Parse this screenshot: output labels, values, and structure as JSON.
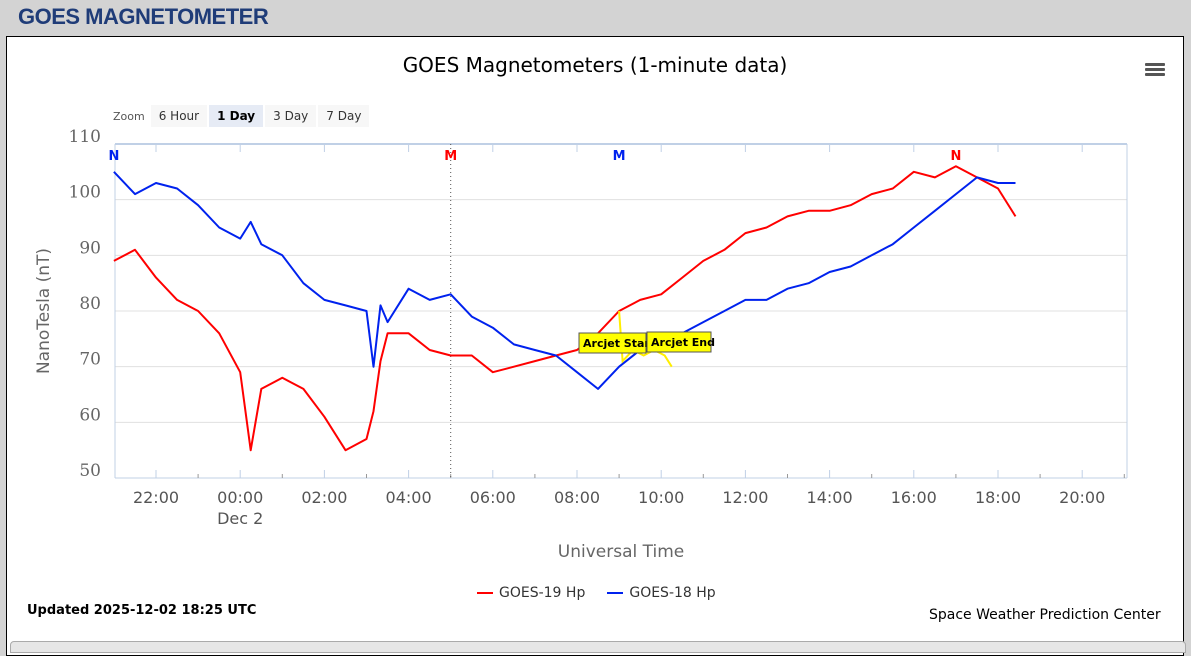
{
  "page": {
    "title": "GOES MAGNETOMETER"
  },
  "chart": {
    "title": "GOES Magnetometers (1-minute data)",
    "menu_icon": "hamburger-menu-icon",
    "zoom": {
      "label": "Zoom",
      "options": [
        "6 Hour",
        "1 Day",
        "3 Day",
        "7 Day"
      ],
      "selected": "1 Day"
    },
    "updated": "Updated 2025-12-02 18:25 UTC",
    "credit": "Space Weather Prediction Center",
    "legend": [
      {
        "label": "GOES-19 Hp",
        "color": "#ff0000"
      },
      {
        "label": "GOES-18 Hp",
        "color": "#0022ee"
      }
    ],
    "annotations": {
      "arcjet_start": "Arcjet Start",
      "arcjet_end": "Arcjet End",
      "markers": [
        {
          "label": "N",
          "time": "21:00",
          "color": "#0022ee"
        },
        {
          "label": "M",
          "time": "05:00",
          "color": "#ff0000"
        },
        {
          "label": "M",
          "time": "09:00",
          "color": "#0022ee"
        },
        {
          "label": "N",
          "time": "17:00",
          "color": "#ff0000"
        }
      ]
    }
  },
  "chart_data": {
    "type": "line",
    "title": "GOES Magnetometers (1-minute data)",
    "xlabel": "Universal Time",
    "ylabel": "NanoTesla (nT)",
    "ylim": [
      50,
      110
    ],
    "yticks": [
      50,
      60,
      70,
      80,
      90,
      100,
      110
    ],
    "xticks": [
      "22:00",
      "00:00",
      "02:00",
      "04:00",
      "06:00",
      "08:00",
      "10:00",
      "12:00",
      "14:00",
      "16:00",
      "18:00",
      "20:00"
    ],
    "xtick_sublabel": {
      "00:00": "Dec 2"
    },
    "xrange": [
      "Dec 1 21:00",
      "Dec 2 21:00"
    ],
    "grid": true,
    "legend_position": "bottom",
    "x": [
      "21:00",
      "21:30",
      "22:00",
      "22:30",
      "23:00",
      "23:30",
      "00:00",
      "00:15",
      "00:30",
      "01:00",
      "01:30",
      "02:00",
      "02:30",
      "03:00",
      "03:10",
      "03:20",
      "03:30",
      "04:00",
      "04:30",
      "05:00",
      "05:30",
      "06:00",
      "06:30",
      "07:00",
      "07:30",
      "08:00",
      "08:30",
      "09:00",
      "09:30",
      "10:00",
      "10:30",
      "11:00",
      "11:30",
      "12:00",
      "12:30",
      "13:00",
      "13:30",
      "14:00",
      "14:30",
      "15:00",
      "15:30",
      "16:00",
      "16:30",
      "17:00",
      "17:30",
      "18:00",
      "18:25"
    ],
    "series": [
      {
        "name": "GOES-19 Hp",
        "color": "#ff0000",
        "values": [
          89,
          91,
          86,
          82,
          80,
          76,
          69,
          55,
          66,
          68,
          66,
          61,
          55,
          57,
          62,
          71,
          76,
          76,
          73,
          72,
          72,
          69,
          70,
          71,
          72,
          73,
          76,
          80,
          82,
          83,
          86,
          89,
          91,
          94,
          95,
          97,
          98,
          98,
          99,
          101,
          102,
          105,
          104,
          106,
          104,
          102,
          97
        ]
      },
      {
        "name": "GOES-18 Hp",
        "color": "#0022ee",
        "values": [
          105,
          101,
          103,
          102,
          99,
          95,
          93,
          96,
          92,
          90,
          85,
          82,
          81,
          80,
          70,
          81,
          78,
          84,
          82,
          83,
          79,
          77,
          74,
          73,
          72,
          69,
          66,
          70,
          73,
          74,
          76,
          78,
          80,
          82,
          82,
          84,
          85,
          87,
          88,
          90,
          92,
          95,
          98,
          101,
          104,
          103,
          103
        ]
      }
    ],
    "annotations": [
      {
        "text": "Arcjet Start",
        "x": "09:00",
        "y": 73
      },
      {
        "text": "Arcjet End",
        "x": "10:15",
        "y": 73
      }
    ]
  }
}
